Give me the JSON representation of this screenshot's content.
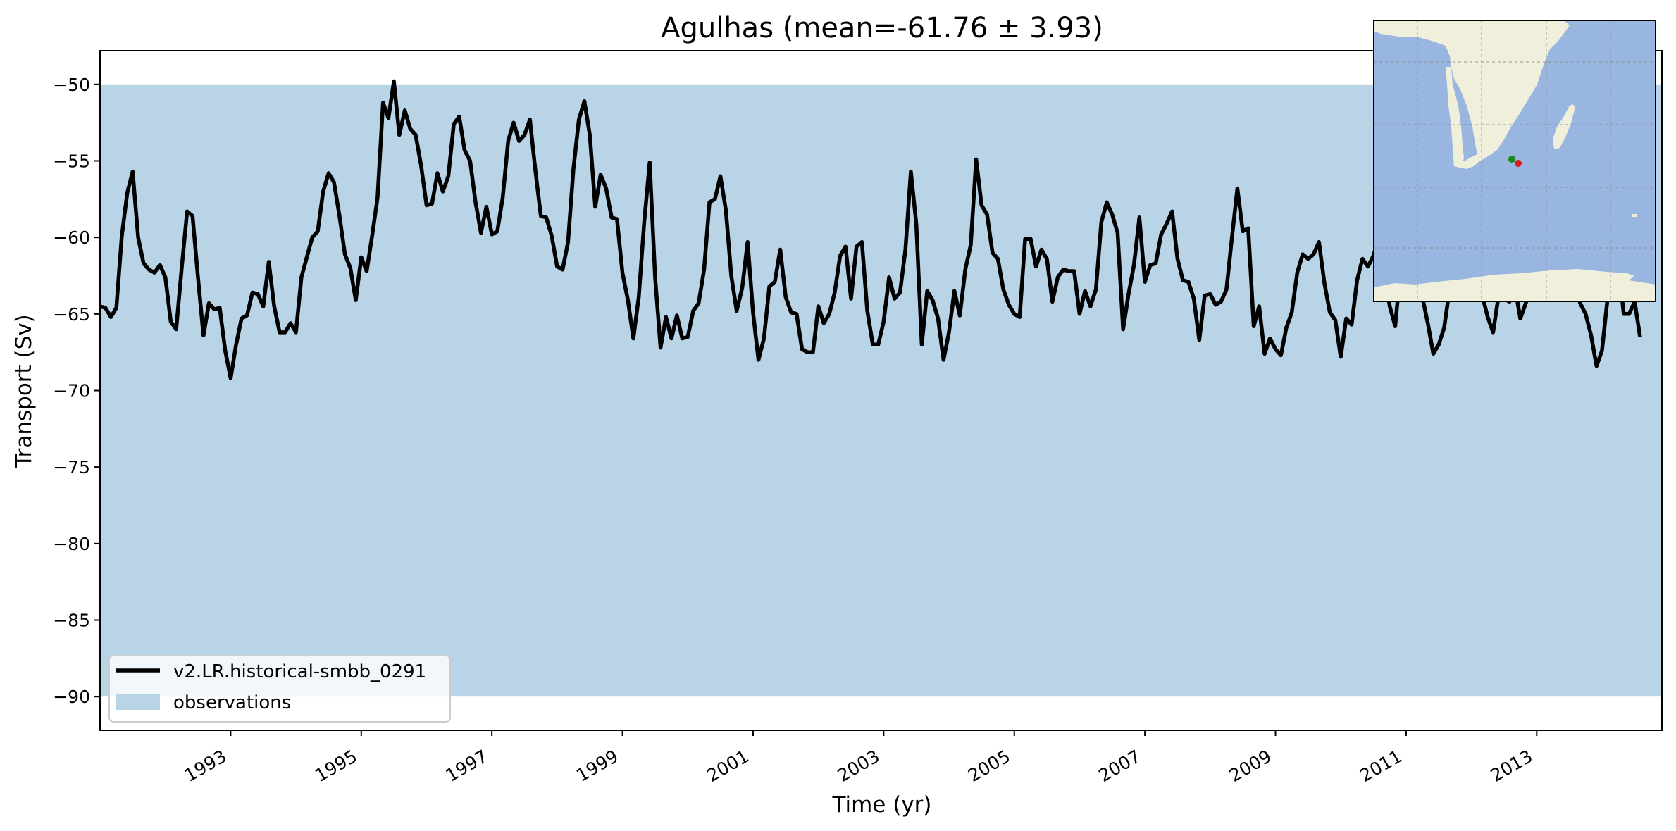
{
  "chart_data": {
    "type": "line",
    "title": "Agulhas (mean=-61.76 ± 3.93)",
    "xlabel": "Time (yr)",
    "ylabel": "Transport (Sv)",
    "xlim": [
      1991.0,
      2014.917
    ],
    "ylim": [
      -92.2,
      -47.8
    ],
    "xticks": [
      1993,
      1995,
      1997,
      1999,
      2001,
      2003,
      2005,
      2007,
      2009,
      2011,
      2013
    ],
    "xtick_labels": [
      "1993",
      "1995",
      "1997",
      "1999",
      "2001",
      "2003",
      "2005",
      "2007",
      "2009",
      "2011",
      "2013"
    ],
    "yticks": [
      -50,
      -55,
      -60,
      -65,
      -70,
      -75,
      -80,
      -85,
      -90
    ],
    "ytick_labels": [
      "−50",
      "−55",
      "−60",
      "−65",
      "−70",
      "−75",
      "−80",
      "−85",
      "−90"
    ],
    "grid": false,
    "legend_placement": "lower-left",
    "series": [
      {
        "name": "v2.LR.historical-smbb_0291",
        "color": "#000000",
        "x_start": 1991.0,
        "x_step": 0.08333,
        "values": [
          -64.5,
          -64.6,
          -65.2,
          -64.6,
          -59.9,
          -57.1,
          -55.7,
          -60.0,
          -61.7,
          -62.1,
          -62.3,
          -61.8,
          -62.6,
          -65.5,
          -66.0,
          -62.0,
          -58.3,
          -58.6,
          -62.6,
          -66.4,
          -64.3,
          -64.7,
          -64.6,
          -67.4,
          -69.2,
          -67.0,
          -65.3,
          -65.1,
          -63.6,
          -63.7,
          -64.5,
          -61.6,
          -64.5,
          -66.2,
          -66.2,
          -65.6,
          -66.2,
          -62.6,
          -61.3,
          -60.0,
          -59.6,
          -57.0,
          -55.8,
          -56.4,
          -58.6,
          -61.1,
          -62.0,
          -64.1,
          -61.3,
          -62.2,
          -59.9,
          -57.4,
          -51.2,
          -52.2,
          -49.8,
          -53.3,
          -51.7,
          -52.9,
          -53.3,
          -55.3,
          -57.9,
          -57.8,
          -55.8,
          -57.0,
          -56.0,
          -52.6,
          -52.1,
          -54.3,
          -55.0,
          -57.7,
          -59.7,
          -58.0,
          -59.8,
          -59.6,
          -57.4,
          -53.7,
          -52.5,
          -53.7,
          -53.3,
          -52.3,
          -55.6,
          -58.6,
          -58.7,
          -59.9,
          -61.9,
          -62.1,
          -60.3,
          -55.5,
          -52.3,
          -51.1,
          -53.3,
          -58.0,
          -55.9,
          -56.8,
          -58.7,
          -58.8,
          -62.3,
          -64.1,
          -66.6,
          -63.9,
          -59.0,
          -55.1,
          -62.6,
          -67.2,
          -65.2,
          -66.6,
          -65.1,
          -66.6,
          -66.5,
          -64.8,
          -64.3,
          -62.1,
          -57.7,
          -57.5,
          -56.0,
          -58.2,
          -62.5,
          -64.8,
          -63.3,
          -60.3,
          -64.9,
          -68.0,
          -66.6,
          -63.2,
          -62.9,
          -60.8,
          -63.9,
          -64.9,
          -65.0,
          -67.3,
          -67.5,
          -67.5,
          -64.5,
          -65.6,
          -65.0,
          -63.6,
          -61.2,
          -60.6,
          -64.0,
          -60.6,
          -60.3,
          -64.8,
          -67.0,
          -67.0,
          -65.5,
          -62.6,
          -64.0,
          -63.6,
          -60.8,
          -55.7,
          -59.1,
          -67.0,
          -63.5,
          -64.1,
          -65.3,
          -68.0,
          -66.2,
          -63.5,
          -65.1,
          -62.1,
          -60.5,
          -54.9,
          -57.9,
          -58.5,
          -61.0,
          -61.4,
          -63.4,
          -64.4,
          -65.0,
          -65.2,
          -60.1,
          -60.1,
          -61.9,
          -60.8,
          -61.4,
          -64.2,
          -62.6,
          -62.1,
          -62.2,
          -62.2,
          -65.0,
          -63.5,
          -64.5,
          -63.4,
          -59.0,
          -57.7,
          -58.5,
          -59.7,
          -66.0,
          -63.7,
          -61.8,
          -58.7,
          -62.9,
          -61.8,
          -61.7,
          -59.8,
          -59.1,
          -58.3,
          -61.4,
          -62.8,
          -62.9,
          -64.0,
          -66.7,
          -63.8,
          -63.7,
          -64.4,
          -64.2,
          -63.4,
          -60.0,
          -56.8,
          -59.6,
          -59.4,
          -65.8,
          -64.5,
          -67.6,
          -66.6,
          -67.3,
          -67.7,
          -65.9,
          -64.9,
          -62.3,
          -61.1,
          -61.4,
          -61.1,
          -60.3,
          -63.0,
          -64.9,
          -65.4,
          -67.8,
          -65.3,
          -65.7,
          -62.8,
          -61.4,
          -61.9,
          -61.2,
          -60.0,
          -61.9,
          -64.5,
          -65.8,
          -62.0,
          -60.8,
          -59.6,
          -62.8,
          -63.9,
          -65.6,
          -67.6,
          -67.0,
          -65.9,
          -63.4,
          -61.5,
          -60.6,
          -62.6,
          -63.9,
          -64.0,
          -63.8,
          -65.2,
          -66.2,
          -63.8,
          -64.0,
          -64.2,
          -63.2,
          -65.3,
          -64.3,
          -63.1,
          -61.3,
          -61.9,
          -60.2,
          -61.8,
          -62.4,
          -61.5,
          -62.6,
          -62.9,
          -64.3,
          -65.0,
          -66.4,
          -68.4,
          -67.4,
          -64.1,
          -62.5,
          -61.7,
          -65.0,
          -65.0,
          -64.2,
          -66.5
        ]
      }
    ],
    "band": {
      "name": "observations",
      "y_low": -90,
      "y_high": -50,
      "color": "#bad4e7"
    }
  },
  "inset_map": {
    "ocean_color": "#99b6e0",
    "land_color": "#efefdc",
    "markers": [
      {
        "color": "#1a8a1a"
      },
      {
        "color": "#e01919"
      }
    ]
  }
}
